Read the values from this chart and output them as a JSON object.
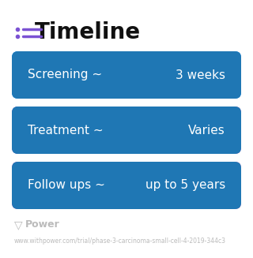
{
  "title": "Timeline",
  "title_fontsize": 20,
  "title_fontweight": "bold",
  "title_color": "#111111",
  "icon_color": "#7B52D3",
  "background_color": "#ffffff",
  "bars": [
    {
      "label_left": "Screening ~",
      "label_right": "3 weeks",
      "color_left": "#2196F3",
      "color_right": "#42A5F5"
    },
    {
      "label_left": "Treatment ~",
      "label_right": "Varies",
      "color_left": "#5C6BC0",
      "color_right": "#AB7EC8"
    },
    {
      "label_left": "Follow ups ~",
      "label_right": "up to 5 years",
      "color_left": "#8E6BBF",
      "color_right": "#C28AC8"
    }
  ],
  "text_fontsize": 11,
  "text_color": "#ffffff",
  "watermark_text": "Power",
  "watermark_fontsize": 9,
  "watermark_color": "#bbbbbb",
  "url_text": "www.withpower.com/trial/phase-3-carcinoma-small-cell-4-2019-344c3",
  "url_fontsize": 5.5,
  "url_color": "#bbbbbb"
}
